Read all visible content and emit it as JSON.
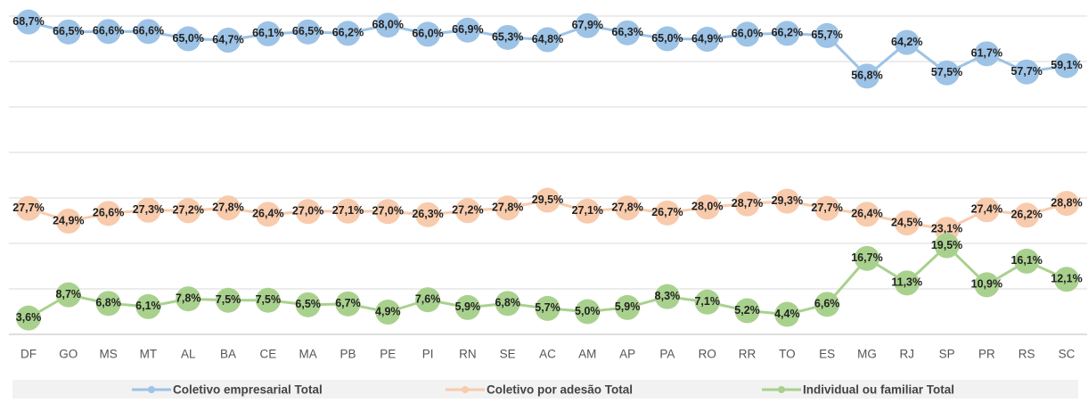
{
  "chart_data": {
    "type": "line",
    "categories": [
      "DF",
      "GO",
      "MS",
      "MT",
      "AL",
      "BA",
      "CE",
      "MA",
      "PB",
      "PE",
      "PI",
      "RN",
      "SE",
      "AC",
      "AM",
      "AP",
      "PA",
      "RO",
      "RR",
      "TO",
      "ES",
      "MG",
      "RJ",
      "SP",
      "PR",
      "RS",
      "SC"
    ],
    "series": [
      {
        "name": "Coletivo empresarial Total",
        "color": "#9dc3e6",
        "values": [
          68.7,
          66.5,
          66.6,
          66.6,
          65.0,
          64.7,
          66.1,
          66.5,
          66.2,
          68.0,
          66.0,
          66.9,
          65.3,
          64.8,
          67.9,
          66.3,
          65.0,
          64.9,
          66.0,
          66.2,
          65.7,
          56.8,
          64.2,
          57.5,
          61.7,
          57.7,
          59.1
        ],
        "value_labels": [
          "68,7%",
          "66,5%",
          "66,6%",
          "66,6%",
          "65,0%",
          "64,7%",
          "66,1%",
          "66,5%",
          "66,2%",
          "68,0%",
          "66,0%",
          "66,9%",
          "65,3%",
          "64,8%",
          "67,9%",
          "66,3%",
          "65,0%",
          "64,9%",
          "66,0%",
          "66,2%",
          "65,7%",
          "56,8%",
          "64,2%",
          "57,5%",
          "61,7%",
          "57,7%",
          "59,1%"
        ]
      },
      {
        "name": "Coletivo por adesão Total",
        "color": "#f8cbad",
        "values": [
          27.7,
          24.9,
          26.6,
          27.3,
          27.2,
          27.8,
          26.4,
          27.0,
          27.1,
          27.0,
          26.3,
          27.2,
          27.8,
          29.5,
          27.1,
          27.8,
          26.7,
          28.0,
          28.7,
          29.3,
          27.7,
          26.4,
          24.5,
          23.1,
          27.4,
          26.2,
          28.8
        ],
        "value_labels": [
          "27,7%",
          "24,9%",
          "26,6%",
          "27,3%",
          "27,2%",
          "27,8%",
          "26,4%",
          "27,0%",
          "27,1%",
          "27,0%",
          "26,3%",
          "27,2%",
          "27,8%",
          "29,5%",
          "27,1%",
          "27,8%",
          "26,7%",
          "28,0%",
          "28,7%",
          "29,3%",
          "27,7%",
          "26,4%",
          "24,5%",
          "23,1%",
          "27,4%",
          "26,2%",
          "28,8%"
        ]
      },
      {
        "name": "Individual ou familiar Total",
        "color": "#a9d18e",
        "values": [
          3.6,
          8.7,
          6.8,
          6.1,
          7.8,
          7.5,
          7.5,
          6.5,
          6.7,
          4.9,
          7.6,
          5.9,
          6.8,
          5.7,
          5.0,
          5.9,
          8.3,
          7.1,
          5.2,
          4.4,
          6.6,
          16.7,
          11.3,
          19.5,
          10.9,
          16.1,
          12.1
        ],
        "value_labels": [
          "3,6%",
          "8,7%",
          "6,8%",
          "6,1%",
          "7,8%",
          "7,5%",
          "7,5%",
          "6,5%",
          "6,7%",
          "4,9%",
          "7,6%",
          "5,9%",
          "6,8%",
          "5,7%",
          "5,0%",
          "5,9%",
          "8,3%",
          "7,1%",
          "5,2%",
          "4,4%",
          "6,6%",
          "16,7%",
          "11,3%",
          "19,5%",
          "10,9%",
          "16,1%",
          "12,1%"
        ]
      }
    ],
    "ylim": [
      0,
      70
    ],
    "yticks": [
      0,
      10,
      20,
      30,
      40,
      50,
      60,
      70
    ],
    "grid": true
  }
}
